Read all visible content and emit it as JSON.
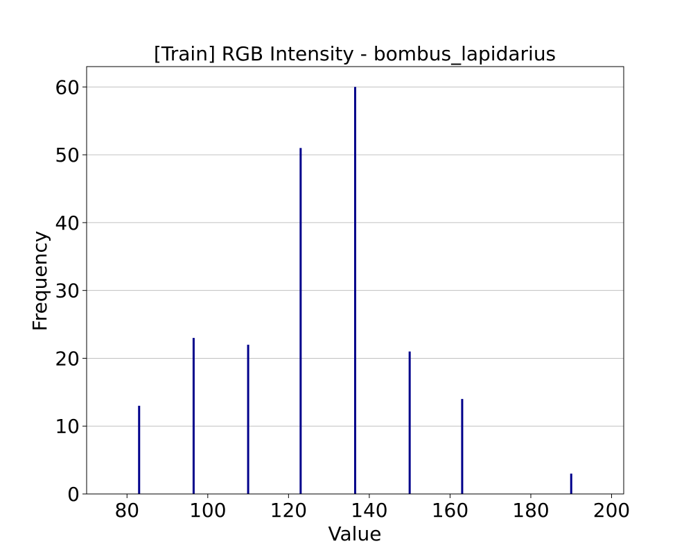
{
  "chart_data": {
    "type": "bar",
    "title": "[Train] RGB Intensity - bombus_lapidarius",
    "xlabel": "Value",
    "ylabel": "Frequency",
    "xlim": [
      70,
      203
    ],
    "ylim": [
      0,
      63
    ],
    "x_ticks": [
      80,
      100,
      120,
      140,
      160,
      180,
      200
    ],
    "y_ticks": [
      0,
      10,
      20,
      30,
      40,
      50,
      60
    ],
    "grid": "y",
    "bar_color": "#00008b",
    "x": [
      83,
      96.5,
      110,
      123,
      136.5,
      150,
      163,
      190
    ],
    "values": [
      13,
      23,
      22,
      51,
      60,
      21,
      14,
      3
    ]
  }
}
